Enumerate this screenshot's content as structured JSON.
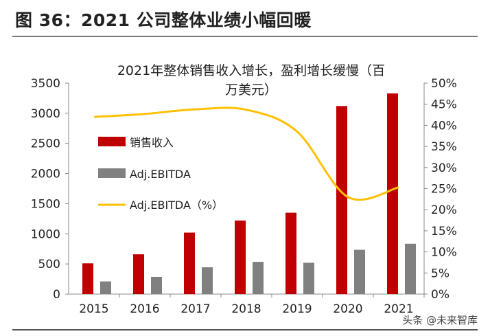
{
  "heading": "图 36：2021 公司整体业绩小幅回暖",
  "watermark": "头条 @未来智库",
  "chart_data": {
    "type": "bar",
    "title": "2021年整体销售收入增长，盈利增长缓慢（百万美元）",
    "categories": [
      "2015",
      "2016",
      "2017",
      "2018",
      "2019",
      "2020",
      "2021"
    ],
    "series": [
      {
        "name": "销售收入",
        "type": "bar",
        "axis": "left",
        "color": "#C00000",
        "values": [
          510,
          660,
          1020,
          1220,
          1350,
          3120,
          3330
        ]
      },
      {
        "name": "Adj.EBITDA",
        "type": "bar",
        "axis": "left",
        "color": "#808080",
        "values": [
          210,
          285,
          445,
          535,
          520,
          735,
          835
        ]
      },
      {
        "name": "Adj.EBITDA（%）",
        "type": "line",
        "axis": "right",
        "color": "#FFC000",
        "values": [
          42,
          42.7,
          43.8,
          43.7,
          38.5,
          23,
          25.3
        ]
      }
    ],
    "left_axis": {
      "ylim": [
        0,
        3500
      ],
      "ticks": [
        "0",
        "500",
        "1000",
        "1500",
        "2000",
        "2500",
        "3000",
        "3500"
      ]
    },
    "right_axis": {
      "ylim": [
        0,
        50
      ],
      "ticks": [
        "0%",
        "5%",
        "10%",
        "15%",
        "20%",
        "25%",
        "30%",
        "35%",
        "40%",
        "45%",
        "50%"
      ]
    },
    "grid": false,
    "legend_placement": "left-inside"
  }
}
